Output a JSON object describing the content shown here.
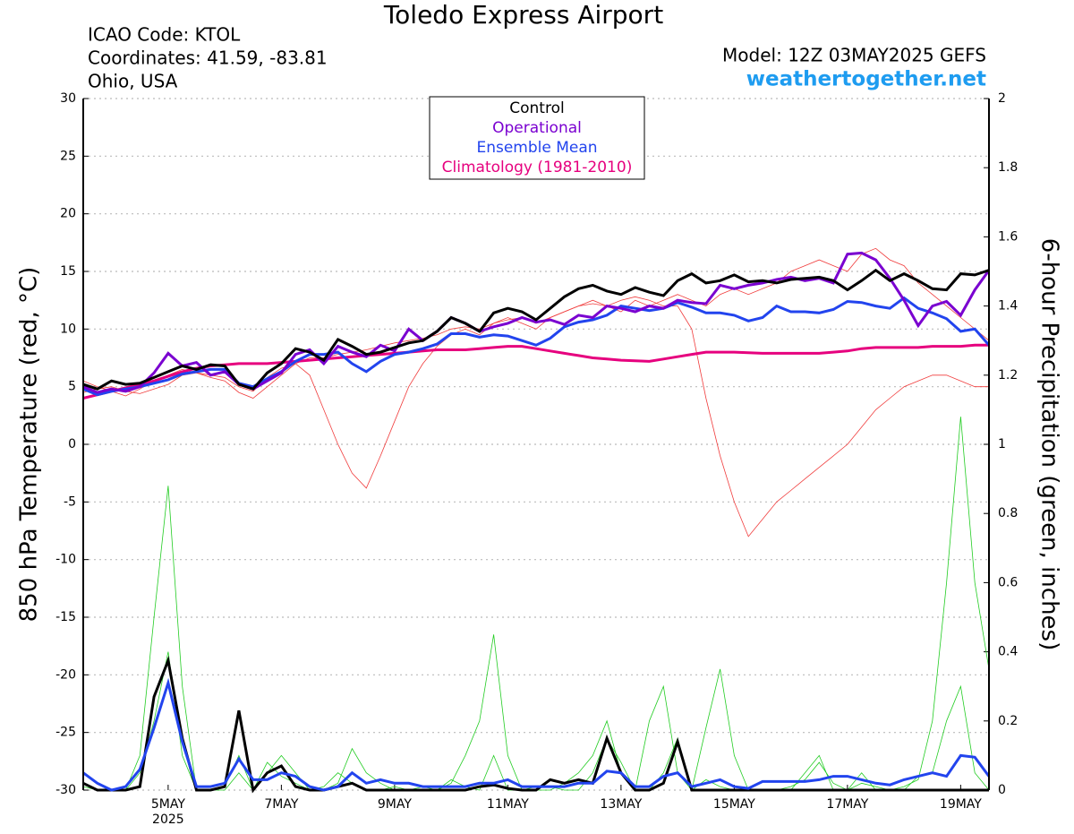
{
  "chart_data": {
    "type": "line",
    "title": "Toledo Express Airport",
    "info": [
      "ICAO Code: KTOL",
      "Coordinates: 41.59, -83.81",
      "Ohio, USA"
    ],
    "model": "Model: 12Z 03MAY2025 GEFS",
    "source": "weathertogether.net",
    "ylabel": "850 hPa Temperature (red, °C)",
    "y2label": "6-hour Precipitation (green, inches)",
    "year_label": "2025",
    "grid": true,
    "legend": "top",
    "categories": [
      null,
      null,
      null,
      null,
      null,
      null,
      "5MAY",
      null,
      null,
      null,
      null,
      null,
      null,
      null,
      "7MAY",
      null,
      null,
      null,
      null,
      null,
      null,
      null,
      "9MAY",
      null,
      null,
      null,
      null,
      null,
      null,
      null,
      "11MAY",
      null,
      null,
      null,
      null,
      null,
      null,
      null,
      "13MAY",
      null,
      null,
      null,
      null,
      null,
      null,
      null,
      "15MAY",
      null,
      null,
      null,
      null,
      null,
      null,
      null,
      "17MAY",
      null,
      null,
      null,
      null,
      null,
      null,
      null,
      "19MAY",
      null,
      null
    ],
    "ylim": [
      -30,
      30
    ],
    "yticks": [
      -30,
      -25,
      -20,
      -15,
      -10,
      -5,
      0,
      5,
      10,
      15,
      20,
      25,
      30
    ],
    "y2lim": [
      0,
      2
    ],
    "y2ticks": [
      0,
      0.2,
      0.4,
      0.6,
      0.8,
      1,
      1.2,
      1.4,
      1.6,
      1.8,
      2
    ],
    "series": [
      {
        "name": "Control",
        "color": "#000000",
        "values": [
          5.2,
          4.8,
          5.5,
          5.2,
          5.3,
          5.8,
          6.3,
          6.8,
          6.5,
          6.9,
          6.8,
          5.2,
          4.8,
          6.2,
          7.0,
          8.3,
          8.0,
          7.3,
          9.1,
          8.5,
          7.8,
          8.0,
          8.4,
          8.8,
          9.0,
          9.8,
          11.0,
          10.5,
          9.8,
          11.4,
          11.8,
          11.5,
          10.8,
          11.8,
          12.8,
          13.5,
          13.8,
          13.3,
          13.0,
          13.6,
          13.2,
          12.9,
          14.2,
          14.8,
          14.0,
          14.2,
          14.7,
          14.1,
          14.2,
          14.0,
          14.3,
          14.4,
          14.5,
          14.2,
          13.4,
          14.2,
          15.1,
          14.2,
          14.8,
          14.2,
          13.5,
          13.4,
          14.8,
          14.7,
          15.1
        ],
        "precip_values": [
          0.02,
          0,
          0,
          0,
          0.01,
          0.27,
          0.375,
          0.15,
          0,
          0,
          0.01,
          0.23,
          0,
          0.05,
          0.07,
          0.01,
          0,
          0,
          0.01,
          0.02,
          0,
          0,
          0,
          0,
          0,
          0,
          0,
          0,
          0.01,
          0.015,
          0.005,
          0,
          0,
          0.03,
          0.02,
          0.03,
          0.02,
          0.15,
          0.05,
          0,
          0,
          0.02,
          0.14,
          0,
          0,
          0,
          0,
          0,
          0,
          0,
          0,
          0,
          0,
          0,
          0,
          0,
          0,
          0,
          0,
          0,
          0,
          0,
          0,
          0,
          0
        ]
      },
      {
        "name": "Operational",
        "color": "#7a00d0",
        "values": [
          5.0,
          4.5,
          4.8,
          4.6,
          5.0,
          6.2,
          7.9,
          6.8,
          7.1,
          6.0,
          6.3,
          5.2,
          4.8,
          5.5,
          6.2,
          7.8,
          8.2,
          7.0,
          8.5,
          8.0,
          7.6,
          8.6,
          8.1,
          10.0,
          9.0,
          9.8,
          11.0,
          10.5,
          9.8,
          10.2,
          10.5,
          11.0,
          10.6,
          10.8,
          10.4,
          11.2,
          11.0,
          12.0,
          11.8,
          11.5,
          12.0,
          11.8,
          12.5,
          12.3,
          12.2,
          13.8,
          13.5,
          13.8,
          14.0,
          14.3,
          14.5,
          14.2,
          14.4,
          14.0,
          16.5,
          16.6,
          16.0,
          14.4,
          12.5,
          10.3,
          12.0,
          12.4,
          11.2,
          13.4,
          15.1
        ]
      },
      {
        "name": "Ensemble Mean",
        "color": "#2244ee",
        "values": [
          4.8,
          4.3,
          4.6,
          4.8,
          5.0,
          5.3,
          5.6,
          6.1,
          6.3,
          6.5,
          6.5,
          5.3,
          5.0,
          5.7,
          6.3,
          7.2,
          7.8,
          7.8,
          8.0,
          7.0,
          6.3,
          7.2,
          7.8,
          8.0,
          8.3,
          8.7,
          9.6,
          9.6,
          9.3,
          9.5,
          9.4,
          9.0,
          8.6,
          9.2,
          10.2,
          10.6,
          10.8,
          11.2,
          12.0,
          11.8,
          11.6,
          11.8,
          12.3,
          11.9,
          11.4,
          11.4,
          11.2,
          10.7,
          11.0,
          12.0,
          11.5,
          11.5,
          11.4,
          11.7,
          12.4,
          12.3,
          12.0,
          11.8,
          12.7,
          11.8,
          11.4,
          10.9,
          9.8,
          10.0,
          8.6
        ],
        "precip_values": [
          0.05,
          0.02,
          0,
          0.01,
          0.06,
          0.18,
          0.31,
          0.14,
          0.01,
          0.01,
          0.02,
          0.09,
          0.03,
          0.03,
          0.05,
          0.04,
          0.01,
          0,
          0.01,
          0.05,
          0.02,
          0.03,
          0.02,
          0.02,
          0.01,
          0.01,
          0.01,
          0.01,
          0.02,
          0.02,
          0.03,
          0.01,
          0.01,
          0.01,
          0.01,
          0.02,
          0.02,
          0.055,
          0.05,
          0.01,
          0.01,
          0.04,
          0.05,
          0.01,
          0.02,
          0.03,
          0.01,
          0.005,
          0.025,
          0.025,
          0.025,
          0.025,
          0.03,
          0.04,
          0.04,
          0.03,
          0.02,
          0.015,
          0.03,
          0.04,
          0.05,
          0.04,
          0.1,
          0.095,
          0.04
        ]
      },
      {
        "name": "Climatology (1981-2010)",
        "color": "#e6007e",
        "values": [
          4.0,
          4.3,
          4.6,
          4.9,
          5.2,
          5.5,
          5.9,
          6.3,
          6.6,
          6.8,
          6.9,
          7.0,
          7.0,
          7.0,
          7.1,
          7.2,
          7.3,
          7.4,
          7.5,
          7.6,
          7.7,
          7.8,
          7.9,
          8.0,
          8.1,
          8.2,
          8.2,
          8.2,
          8.3,
          8.4,
          8.5,
          8.5,
          8.3,
          8.1,
          7.9,
          7.7,
          7.5,
          7.4,
          7.3,
          7.25,
          7.2,
          7.4,
          7.6,
          7.8,
          8.0,
          8.0,
          8.0,
          7.95,
          7.9,
          7.9,
          7.9,
          7.9,
          7.9,
          8.0,
          8.1,
          8.3,
          8.4,
          8.4,
          8.4,
          8.4,
          8.5,
          8.5,
          8.5,
          8.6,
          8.6
        ]
      }
    ],
    "members": [
      {
        "color": "#f03c3c",
        "values": [
          5.5,
          5.0,
          4.6,
          4.2,
          4.8,
          5.5,
          6.0,
          6.5,
          6.2,
          6.0,
          5.8,
          5.0,
          4.6,
          5.8,
          6.6,
          7.0,
          6.0,
          3.0,
          0.0,
          -2.5,
          -3.8,
          -1.0,
          2.0,
          5.0,
          7.0,
          8.5,
          9.5,
          10.0,
          9.5,
          10.5,
          11.0,
          10.5,
          10.0,
          11.0,
          11.5,
          12.0,
          12.5,
          12.0,
          11.5,
          12.5,
          12.0,
          12.5,
          13.0,
          12.5,
          12.0,
          13.0,
          13.5,
          13.0,
          13.5,
          14.0,
          15.0,
          15.5,
          16.0,
          15.5,
          15.0,
          16.5,
          17.0,
          16.0,
          15.5,
          14.0,
          13.0,
          12.0,
          11.0,
          10.0,
          9.0
        ]
      },
      {
        "color": "#f03c3c",
        "values": [
          4.5,
          4.8,
          5.0,
          4.6,
          4.4,
          4.8,
          5.2,
          6.0,
          6.2,
          5.8,
          5.5,
          4.5,
          4.0,
          5.0,
          6.0,
          7.0,
          7.5,
          7.5,
          7.8,
          8.0,
          8.2,
          8.5,
          8.8,
          9.0,
          9.2,
          9.5,
          10.0,
          10.2,
          10.0,
          10.5,
          10.8,
          11.0,
          10.5,
          11.0,
          11.5,
          12.0,
          12.2,
          12.0,
          12.5,
          12.8,
          12.5,
          12.0,
          12.0,
          10.0,
          4.0,
          -1.0,
          -5.0,
          -8.0,
          -6.5,
          -5.0,
          -4.0,
          -3.0,
          -2.0,
          -1.0,
          0.0,
          1.5,
          3.0,
          4.0,
          5.0,
          5.5,
          6.0,
          6.0,
          5.5,
          5.0,
          5.0
        ]
      },
      {
        "color": "#22cc22",
        "axis": "y2",
        "values": [
          0.01,
          0,
          0,
          0,
          0.1,
          0.5,
          0.88,
          0.3,
          0,
          0,
          0.01,
          0.1,
          0,
          0.05,
          0.1,
          0.05,
          0,
          0,
          0.02,
          0.12,
          0.05,
          0.02,
          0,
          0,
          0.01,
          0,
          0.03,
          0.01,
          0,
          0.1,
          0,
          0,
          0,
          0,
          0.02,
          0.05,
          0.1,
          0.2,
          0.05,
          0,
          0,
          0.05,
          0.15,
          0,
          0.03,
          0.01,
          0,
          0,
          0,
          0,
          0.01,
          0.03,
          0.08,
          0.02,
          0,
          0.05,
          0,
          0,
          0,
          0.04,
          0.05,
          0.2,
          0.3,
          0.05,
          0
        ]
      },
      {
        "color": "#22cc22",
        "axis": "y2",
        "values": [
          0.05,
          0.02,
          0,
          0,
          0.05,
          0.2,
          0.4,
          0.1,
          0,
          0,
          0,
          0.05,
          0,
          0.08,
          0.04,
          0.02,
          0,
          0.01,
          0.05,
          0.02,
          0,
          0,
          0.01,
          0,
          0,
          0,
          0.02,
          0.1,
          0.2,
          0.45,
          0.1,
          0,
          0.01,
          0.01,
          0,
          0,
          0.05,
          0.15,
          0.08,
          0,
          0.2,
          0.3,
          0.05,
          0,
          0.18,
          0.35,
          0.1,
          0,
          0,
          0,
          0,
          0.05,
          0.1,
          0,
          0,
          0.02,
          0.01,
          0,
          0.01,
          0.03,
          0.2,
          0.6,
          1.08,
          0.6,
          0.35
        ]
      }
    ]
  }
}
